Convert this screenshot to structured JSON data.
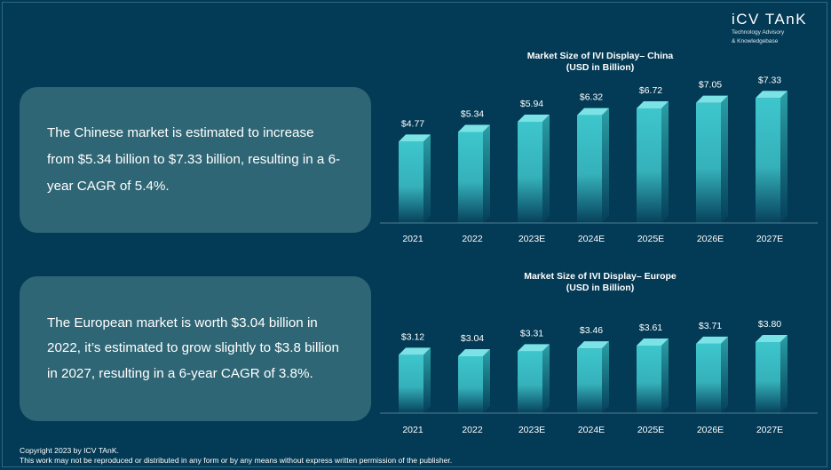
{
  "brand": {
    "name": "iCV TAnK",
    "tagline_line1": "Technology Advisory",
    "tagline_line2": "& Knowledgebase"
  },
  "colors": {
    "background": "#033a55",
    "textbox": "#2f6675",
    "bar_front": "#3ec6cc",
    "bar_top": "#7be3e6",
    "bar_side": "#2a9fa6"
  },
  "china_text": "The Chinese market is estimated to increase from $5.34 billion to $7.33 billion, resulting in a 6-year CAGR of 5.4%.",
  "europe_text": "The European market is worth $3.04 billion in 2022, it’s estimated to grow slightly to $3.8 billion in 2027, resulting in a 6-year CAGR of 3.8%.",
  "chart_data": [
    {
      "type": "bar",
      "title": "Market Size of IVI Display– China",
      "subtitle": "(USD in Billion)",
      "categories": [
        "2021",
        "2022",
        "2023E",
        "2024E",
        "2025E",
        "2026E",
        "2027E"
      ],
      "values": [
        4.77,
        5.34,
        5.94,
        6.32,
        6.72,
        7.05,
        7.33
      ],
      "labels": [
        "$4.77",
        "$5.34",
        "$5.94",
        "$6.32",
        "$6.72",
        "$7.05",
        "$7.33"
      ],
      "xlabel": "",
      "ylabel": "",
      "ylim": [
        0,
        7.5
      ],
      "grid": false
    },
    {
      "type": "bar",
      "title": "Market Size of IVI Display– Europe",
      "subtitle": "(USD in Billion)",
      "categories": [
        "2021",
        "2022",
        "2023E",
        "2024E",
        "2025E",
        "2026E",
        "2027E"
      ],
      "values": [
        3.12,
        3.04,
        3.31,
        3.46,
        3.61,
        3.71,
        3.8
      ],
      "labels": [
        "$3.12",
        "$3.04",
        "$3.31",
        "$3.46",
        "$3.61",
        "$3.71",
        "$3.80"
      ],
      "xlabel": "",
      "ylabel": "",
      "ylim": [
        0,
        3.8
      ],
      "grid": false
    }
  ],
  "footer": {
    "copyright": "Copyright  2023 by ICV TAnK.",
    "notice": "This work may not be reproduced or distributed in any form or by any means without express written permission of the publisher."
  }
}
